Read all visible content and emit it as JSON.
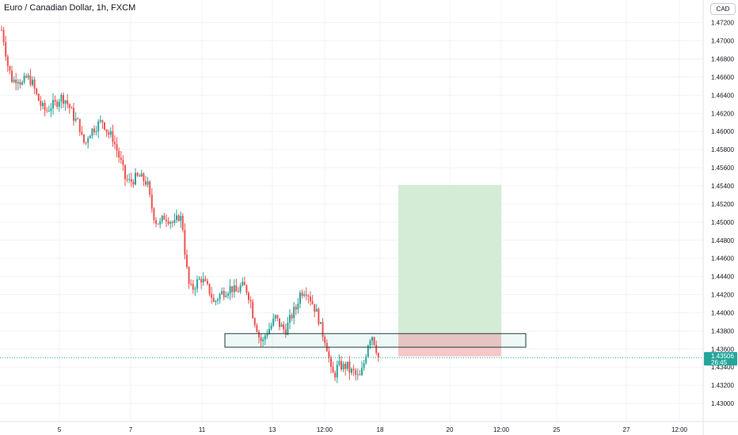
{
  "header": {
    "symbol_title": "Euro / Canadian Dollar, 1h, FXCM"
  },
  "currency_badge": "CAD",
  "price_marker": {
    "price": "1.43506",
    "countdown": "26:45"
  },
  "colors": {
    "bull": "#26a69a",
    "bear": "#ef5350",
    "grid": "#f0f3fa",
    "target_zone": "#d4ecd5",
    "stop_zone": "#f7c7c7",
    "price_line": "#26a69a",
    "marker_bg": "#26a69a"
  },
  "chart_data": {
    "type": "candlestick",
    "title": "Euro / Canadian Dollar, 1h, FXCM",
    "ylim": [
      1.428,
      1.4745
    ],
    "yticks": [
      "1.43000",
      "1.43200",
      "1.43400",
      "1.43600",
      "1.43800",
      "1.44000",
      "1.44200",
      "1.44400",
      "1.44600",
      "1.44800",
      "1.45000",
      "1.45200",
      "1.45400",
      "1.45600",
      "1.45800",
      "1.46000",
      "1.46200",
      "1.46400",
      "1.46600",
      "1.46800",
      "1.47000",
      "1.47200"
    ],
    "xticks": [
      "5",
      "7",
      "11",
      "13",
      "12:00",
      "18",
      "20",
      "12:00",
      "25",
      "27",
      "12:00"
    ],
    "grid": true,
    "price_path": [
      [
        0,
        1.472
      ],
      [
        5,
        1.47
      ],
      [
        10,
        1.4672
      ],
      [
        16,
        1.4655
      ],
      [
        22,
        1.466
      ],
      [
        28,
        1.4652
      ],
      [
        34,
        1.466
      ],
      [
        40,
        1.4655
      ],
      [
        46,
        1.464
      ],
      [
        52,
        1.4628
      ],
      [
        58,
        1.4622
      ],
      [
        64,
        1.4628
      ],
      [
        70,
        1.463
      ],
      [
        76,
        1.4638
      ],
      [
        82,
        1.4636
      ],
      [
        88,
        1.4626
      ],
      [
        94,
        1.4614
      ],
      [
        100,
        1.4608
      ],
      [
        104,
        1.459
      ],
      [
        108,
        1.4586
      ],
      [
        112,
        1.4598
      ],
      [
        118,
        1.4603
      ],
      [
        124,
        1.4608
      ],
      [
        130,
        1.4612
      ],
      [
        136,
        1.4598
      ],
      [
        142,
        1.4594
      ],
      [
        148,
        1.4578
      ],
      [
        154,
        1.4562
      ],
      [
        158,
        1.4548
      ],
      [
        164,
        1.4544
      ],
      [
        170,
        1.4548
      ],
      [
        176,
        1.455
      ],
      [
        182,
        1.4546
      ],
      [
        186,
        1.4543
      ],
      [
        190,
        1.4522
      ],
      [
        196,
        1.4502
      ],
      [
        202,
        1.4498
      ],
      [
        208,
        1.4507
      ],
      [
        214,
        1.4503
      ],
      [
        220,
        1.4497
      ],
      [
        226,
        1.4507
      ],
      [
        230,
        1.4502
      ],
      [
        234,
        1.4462
      ],
      [
        238,
        1.4432
      ],
      [
        242,
        1.4425
      ],
      [
        248,
        1.4433
      ],
      [
        254,
        1.4438
      ],
      [
        260,
        1.443
      ],
      [
        266,
        1.4422
      ],
      [
        270,
        1.441
      ],
      [
        274,
        1.4416
      ],
      [
        280,
        1.4422
      ],
      [
        286,
        1.4425
      ],
      [
        292,
        1.4428
      ],
      [
        298,
        1.4422
      ],
      [
        304,
        1.4429
      ],
      [
        310,
        1.4428
      ],
      [
        316,
        1.4415
      ],
      [
        320,
        1.4395
      ],
      [
        324,
        1.4385
      ],
      [
        328,
        1.437
      ],
      [
        332,
        1.4368
      ],
      [
        336,
        1.4378
      ],
      [
        342,
        1.4385
      ],
      [
        348,
        1.4395
      ],
      [
        352,
        1.4388
      ],
      [
        356,
        1.4384
      ],
      [
        360,
        1.438
      ],
      [
        364,
        1.4388
      ],
      [
        370,
        1.44
      ],
      [
        374,
        1.4405
      ],
      [
        378,
        1.442
      ],
      [
        382,
        1.4424
      ],
      [
        386,
        1.4426
      ],
      [
        390,
        1.442
      ],
      [
        394,
        1.4412
      ],
      [
        398,
        1.4404
      ],
      [
        402,
        1.4395
      ],
      [
        406,
        1.438
      ],
      [
        410,
        1.4372
      ],
      [
        414,
        1.4358
      ],
      [
        418,
        1.4335
      ],
      [
        422,
        1.433
      ],
      [
        426,
        1.434
      ],
      [
        430,
        1.4342
      ],
      [
        434,
        1.434
      ],
      [
        438,
        1.4342
      ],
      [
        442,
        1.4335
      ],
      [
        446,
        1.4335
      ],
      [
        450,
        1.433
      ],
      [
        454,
        1.4328
      ],
      [
        458,
        1.4338
      ],
      [
        462,
        1.4355
      ],
      [
        466,
        1.4372
      ],
      [
        470,
        1.4375
      ],
      [
        474,
        1.4365
      ],
      [
        478,
        1.435
      ]
    ],
    "annotations": {
      "supply_box": {
        "from": 284,
        "to": 664,
        "high": 1.4377,
        "low": 1.4362
      },
      "position": {
        "from": 503,
        "to": 633,
        "entry": 1.4377,
        "target": 1.4541,
        "stop": 1.4352
      },
      "current_price": 1.43506
    }
  }
}
